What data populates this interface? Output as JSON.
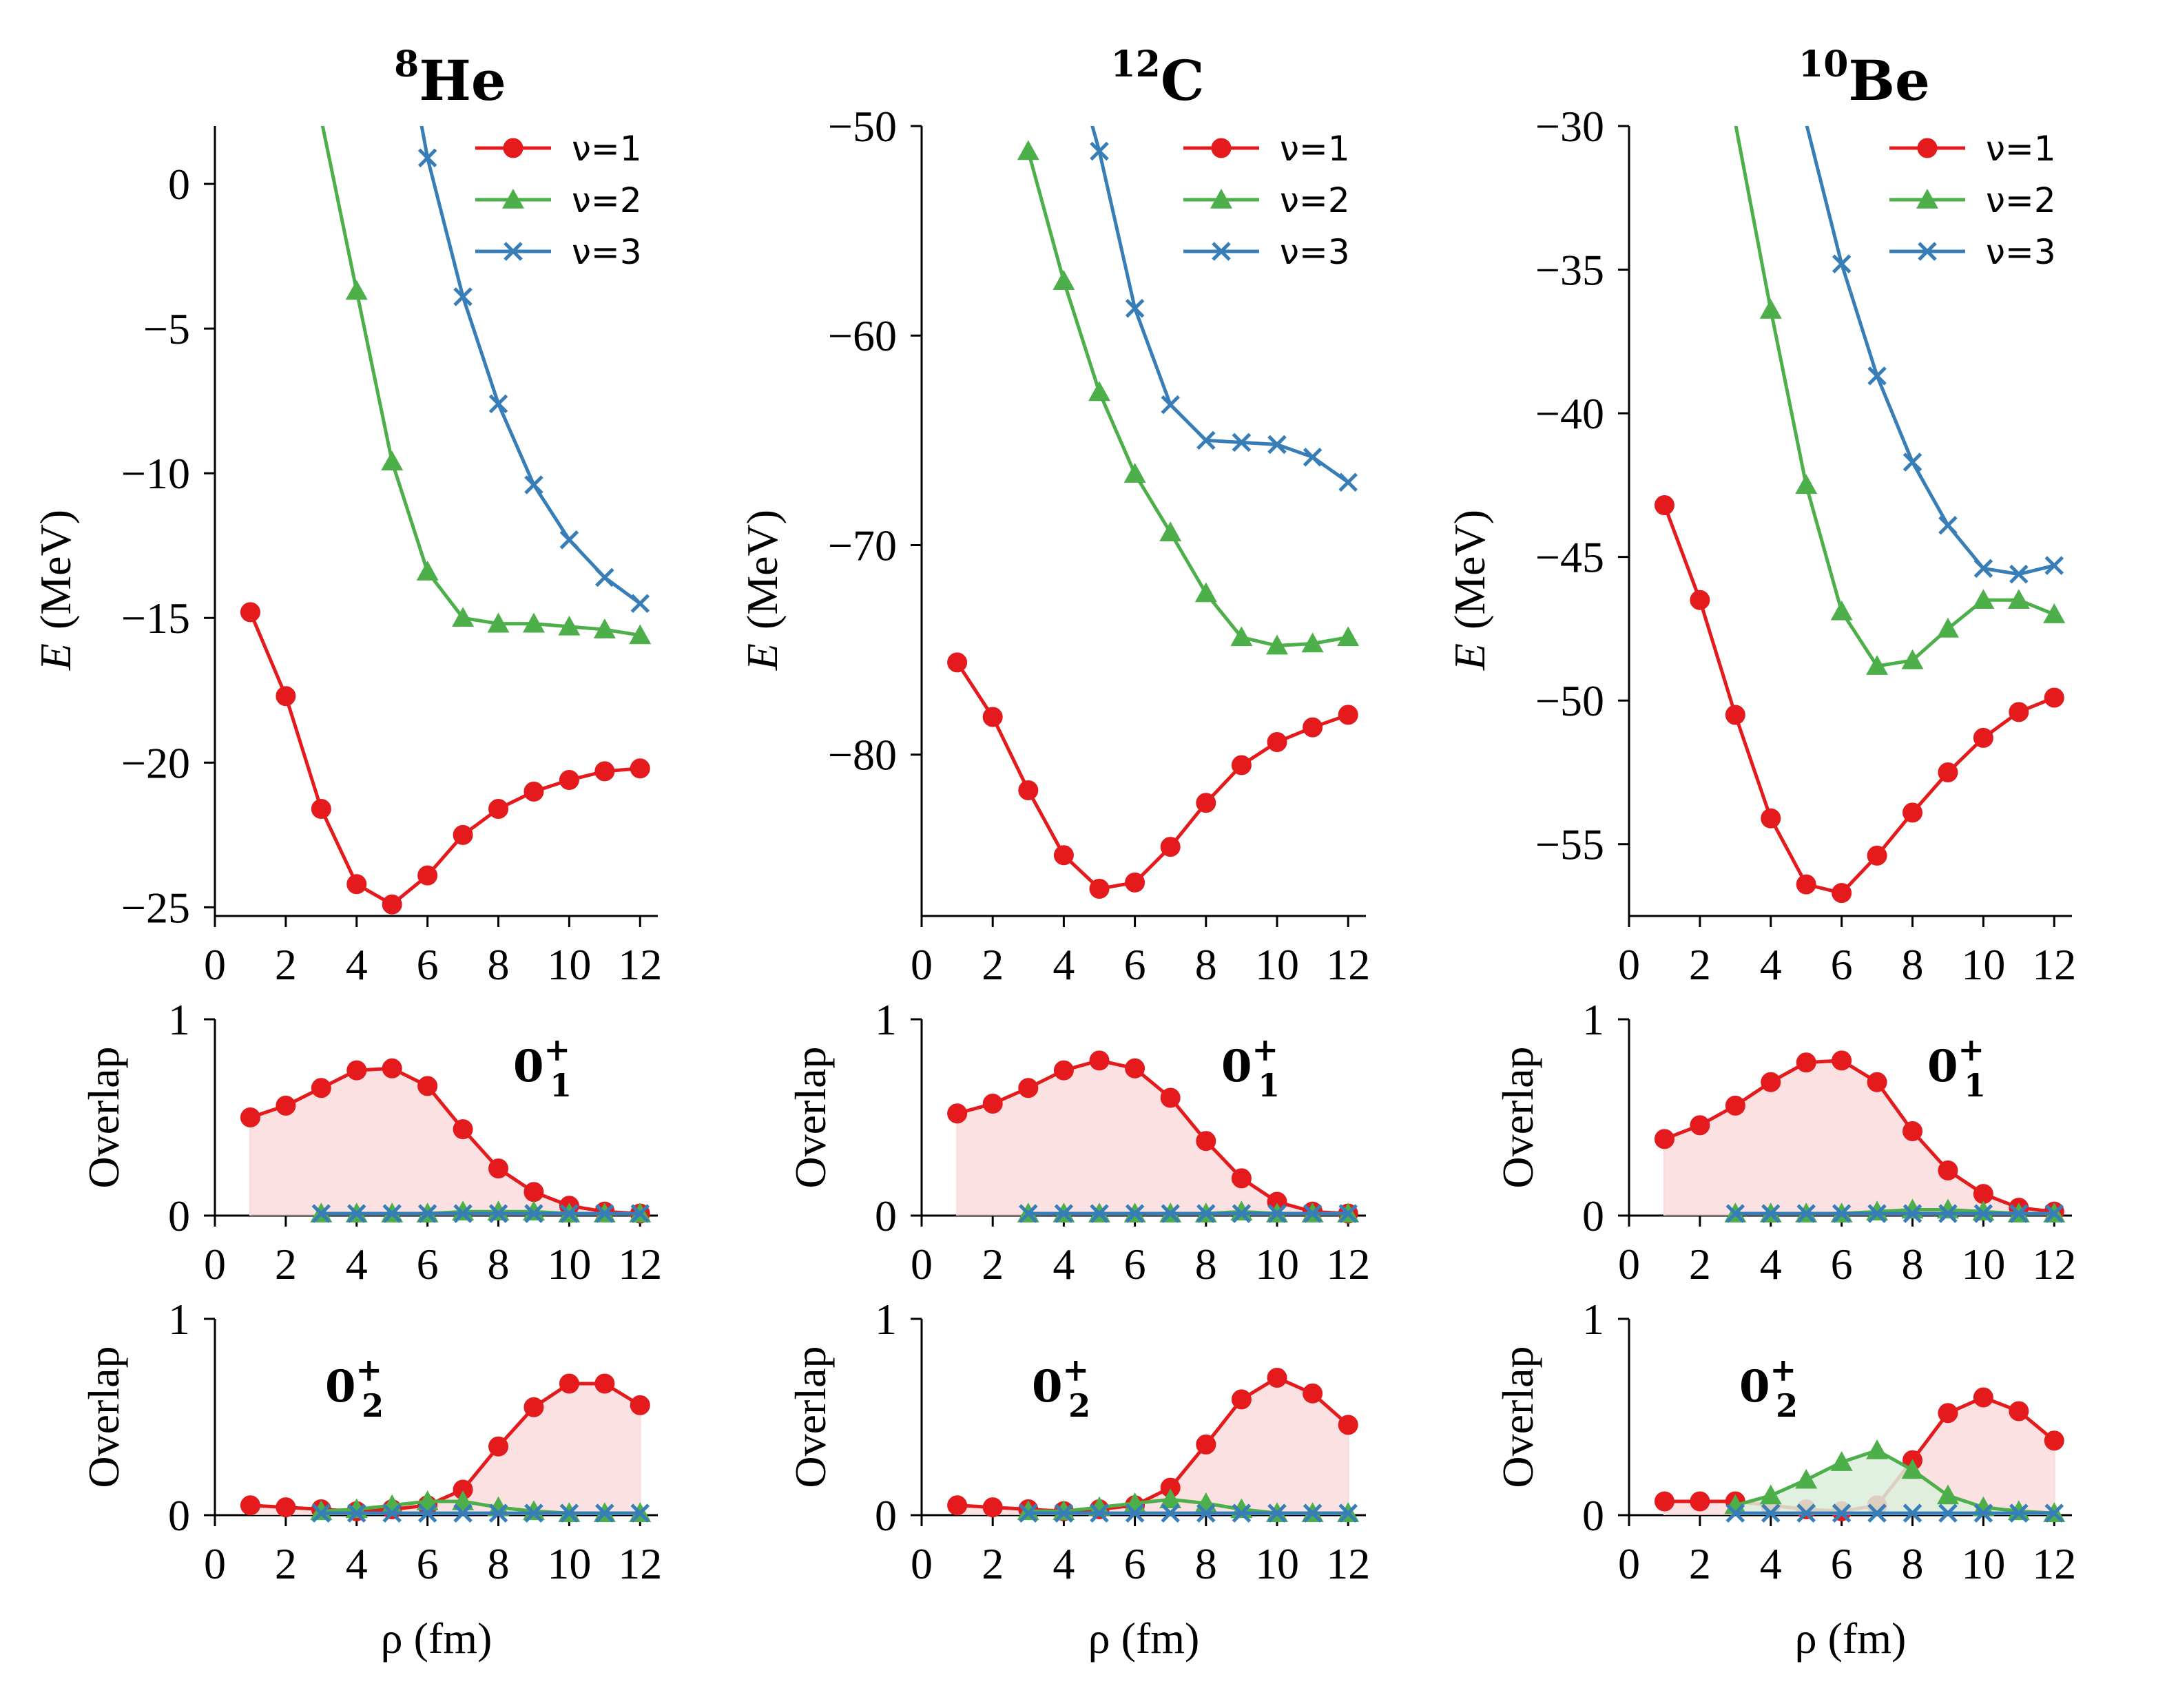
{
  "colors": {
    "nu1": "#e41a1c",
    "nu2": "#4daf4a",
    "nu3": "#377eb8",
    "fill1": "#fadcdc",
    "fill2": "#dcefdc",
    "axis": "#000000"
  },
  "xlabel": "ρ (fm)",
  "ylabel_energy_symbol": "E",
  "ylabel_energy_unit": "(MeV)",
  "ylabel_overlap": "Overlap",
  "legend_labels": [
    "ν=1",
    "ν=2",
    "ν=3"
  ],
  "state_labels": {
    "first": {
      "base": "0",
      "sup": "+",
      "sub": "1"
    },
    "second": {
      "base": "0",
      "sup": "+",
      "sub": "2"
    }
  },
  "chart_data": [
    {
      "type": "line",
      "nucleus": {
        "mass": "8",
        "symbol": "He"
      },
      "energy": {
        "xlim": [
          0,
          12.5
        ],
        "ylim": [
          -25.3,
          2
        ],
        "yticks": [
          0,
          -5,
          -10,
          -15,
          -20,
          -25
        ],
        "ytick_labels": [
          "0",
          "−5",
          "−10",
          "−15",
          "−20",
          "−25"
        ],
        "xticks": [
          0,
          2,
          4,
          6,
          8,
          10,
          12
        ],
        "series": [
          {
            "name": "ν=1",
            "x": [
              1,
              2,
              3,
              4,
              5,
              6,
              7,
              8,
              9,
              10,
              11,
              12
            ],
            "y": [
              -14.8,
              -17.7,
              -21.6,
              -24.2,
              -24.9,
              -23.9,
              -22.5,
              -21.6,
              -21.0,
              -20.6,
              -20.3,
              -20.2
            ]
          },
          {
            "name": "ν=2",
            "x": [
              4,
              5,
              6,
              7,
              8,
              9,
              10,
              11,
              12
            ],
            "y": [
              -3.7,
              -9.6,
              -13.4,
              -15.0,
              -15.2,
              -15.2,
              -15.3,
              -15.4,
              -15.6
            ],
            "extend_top_from_x": 3.0
          },
          {
            "name": "ν=3",
            "x": [
              6,
              7,
              8,
              9,
              10,
              11,
              12
            ],
            "y": [
              0.9,
              -3.9,
              -7.6,
              -10.4,
              -12.3,
              -13.6,
              -14.5
            ],
            "extend_top_from_x": 5.8
          }
        ]
      },
      "overlap_first": {
        "ylim": [
          0,
          1
        ],
        "yticks": [
          0,
          1
        ],
        "series": [
          {
            "name": "ν=1",
            "x": [
              1,
              2,
              3,
              4,
              5,
              6,
              7,
              8,
              9,
              10,
              11,
              12
            ],
            "y": [
              0.5,
              0.56,
              0.65,
              0.74,
              0.75,
              0.66,
              0.44,
              0.24,
              0.12,
              0.05,
              0.02,
              0.01
            ],
            "filled": true
          },
          {
            "name": "ν=2",
            "x": [
              3,
              4,
              5,
              6,
              7,
              8,
              9,
              10,
              11,
              12
            ],
            "y": [
              0.01,
              0.01,
              0.01,
              0.01,
              0.02,
              0.02,
              0.02,
              0.01,
              0.01,
              0.01
            ]
          },
          {
            "name": "ν=3",
            "x": [
              3,
              4,
              5,
              6,
              7,
              8,
              9,
              10,
              11,
              12
            ],
            "y": [
              0.01,
              0.01,
              0.01,
              0.01,
              0.01,
              0.01,
              0.01,
              0.01,
              0.01,
              0.01
            ]
          }
        ]
      },
      "overlap_second": {
        "ylim": [
          0,
          1
        ],
        "yticks": [
          0,
          1
        ],
        "series": [
          {
            "name": "ν=1",
            "x": [
              1,
              2,
              3,
              4,
              5,
              6,
              7,
              8,
              9,
              10,
              11,
              12
            ],
            "y": [
              0.05,
              0.04,
              0.03,
              0.02,
              0.03,
              0.05,
              0.13,
              0.35,
              0.55,
              0.67,
              0.67,
              0.56
            ],
            "filled": true
          },
          {
            "name": "ν=2",
            "x": [
              3,
              4,
              5,
              6,
              7,
              8,
              9,
              10,
              11,
              12
            ],
            "y": [
              0.02,
              0.03,
              0.05,
              0.07,
              0.07,
              0.04,
              0.02,
              0.01,
              0.01,
              0.01
            ]
          },
          {
            "name": "ν=3",
            "x": [
              3,
              4,
              5,
              6,
              7,
              8,
              9,
              10,
              11,
              12
            ],
            "y": [
              0.01,
              0.01,
              0.01,
              0.01,
              0.01,
              0.01,
              0.01,
              0.01,
              0.01,
              0.01
            ]
          }
        ]
      }
    },
    {
      "type": "line",
      "nucleus": {
        "mass": "12",
        "symbol": "C"
      },
      "energy": {
        "xlim": [
          0,
          12.5
        ],
        "ylim": [
          -87.7,
          -50
        ],
        "yticks": [
          -50,
          -60,
          -70,
          -80
        ],
        "ytick_labels": [
          "−50",
          "−60",
          "−70",
          "−80"
        ],
        "xticks": [
          0,
          2,
          4,
          6,
          8,
          10,
          12
        ],
        "series": [
          {
            "name": "ν=1",
            "x": [
              1,
              2,
              3,
              4,
              5,
              6,
              7,
              8,
              9,
              10,
              11,
              12
            ],
            "y": [
              -75.6,
              -78.2,
              -81.7,
              -84.8,
              -86.4,
              -86.1,
              -84.4,
              -82.3,
              -80.5,
              -79.4,
              -78.7,
              -78.1
            ]
          },
          {
            "name": "ν=2",
            "x": [
              3,
              4,
              5,
              6,
              7,
              8,
              9,
              10,
              11,
              12
            ],
            "y": [
              -51.2,
              -57.4,
              -62.7,
              -66.6,
              -69.4,
              -72.3,
              -74.4,
              -74.8,
              -74.7,
              -74.4
            ]
          },
          {
            "name": "ν=3",
            "x": [
              5,
              6,
              7,
              8,
              9,
              10,
              11,
              12
            ],
            "y": [
              -51.2,
              -58.7,
              -63.3,
              -65.0,
              -65.1,
              -65.2,
              -65.8,
              -67.0
            ],
            "extend_top_from_x": 4.75
          }
        ]
      },
      "overlap_first": {
        "ylim": [
          0,
          1
        ],
        "yticks": [
          0,
          1
        ],
        "series": [
          {
            "name": "ν=1",
            "x": [
              1,
              2,
              3,
              4,
              5,
              6,
              7,
              8,
              9,
              10,
              11,
              12
            ],
            "y": [
              0.52,
              0.57,
              0.65,
              0.74,
              0.79,
              0.75,
              0.6,
              0.38,
              0.19,
              0.07,
              0.02,
              0.01
            ],
            "filled": true
          },
          {
            "name": "ν=2",
            "x": [
              3,
              4,
              5,
              6,
              7,
              8,
              9,
              10,
              11,
              12
            ],
            "y": [
              0.01,
              0.01,
              0.01,
              0.01,
              0.01,
              0.01,
              0.02,
              0.01,
              0.01,
              0.01
            ]
          },
          {
            "name": "ν=3",
            "x": [
              3,
              4,
              5,
              6,
              7,
              8,
              9,
              10,
              11,
              12
            ],
            "y": [
              0.01,
              0.01,
              0.01,
              0.01,
              0.01,
              0.01,
              0.01,
              0.01,
              0.01,
              0.01
            ]
          }
        ]
      },
      "overlap_second": {
        "ylim": [
          0,
          1
        ],
        "yticks": [
          0,
          1
        ],
        "series": [
          {
            "name": "ν=1",
            "x": [
              1,
              2,
              3,
              4,
              5,
              6,
              7,
              8,
              9,
              10,
              11,
              12
            ],
            "y": [
              0.05,
              0.04,
              0.03,
              0.02,
              0.03,
              0.05,
              0.14,
              0.36,
              0.59,
              0.7,
              0.62,
              0.46
            ],
            "filled": true
          },
          {
            "name": "ν=2",
            "x": [
              3,
              4,
              5,
              6,
              7,
              8,
              9,
              10,
              11,
              12
            ],
            "y": [
              0.02,
              0.02,
              0.04,
              0.06,
              0.08,
              0.06,
              0.03,
              0.01,
              0.01,
              0.01
            ]
          },
          {
            "name": "ν=3",
            "x": [
              3,
              4,
              5,
              6,
              7,
              8,
              9,
              10,
              11,
              12
            ],
            "y": [
              0.01,
              0.01,
              0.01,
              0.01,
              0.01,
              0.01,
              0.01,
              0.01,
              0.01,
              0.01
            ]
          }
        ]
      }
    },
    {
      "type": "line",
      "nucleus": {
        "mass": "10",
        "symbol": "Be"
      },
      "energy": {
        "xlim": [
          0,
          12.5
        ],
        "ylim": [
          -57.5,
          -30
        ],
        "yticks": [
          -30,
          -35,
          -40,
          -45,
          -50,
          -55
        ],
        "ytick_labels": [
          "−30",
          "−35",
          "−40",
          "−45",
          "−50",
          "−55"
        ],
        "xticks": [
          0,
          2,
          4,
          6,
          8,
          10,
          12
        ],
        "series": [
          {
            "name": "ν=1",
            "x": [
              1,
              2,
              3,
              4,
              5,
              6,
              7,
              8,
              9,
              10,
              11,
              12
            ],
            "y": [
              -43.2,
              -46.5,
              -50.5,
              -54.1,
              -56.4,
              -56.7,
              -55.4,
              -53.9,
              -52.5,
              -51.3,
              -50.4,
              -49.9
            ]
          },
          {
            "name": "ν=2",
            "x": [
              3,
              4,
              5,
              6,
              7,
              8,
              9,
              10,
              11,
              12
            ],
            "y": [
              -29.9,
              -36.4,
              -42.5,
              -46.9,
              -48.8,
              -48.6,
              -47.5,
              -46.5,
              -46.5,
              -47.0
            ]
          },
          {
            "name": "ν=3",
            "x": [
              5,
              6,
              7,
              8,
              9,
              10,
              11,
              12
            ],
            "y": [
              -29.9,
              -34.8,
              -38.7,
              -41.7,
              -43.9,
              -45.4,
              -45.6,
              -45.3
            ]
          }
        ]
      },
      "overlap_first": {
        "ylim": [
          0,
          1
        ],
        "yticks": [
          0,
          1
        ],
        "series": [
          {
            "name": "ν=1",
            "x": [
              1,
              2,
              3,
              4,
              5,
              6,
              7,
              8,
              9,
              10,
              11,
              12
            ],
            "y": [
              0.39,
              0.46,
              0.56,
              0.68,
              0.78,
              0.79,
              0.68,
              0.43,
              0.23,
              0.11,
              0.04,
              0.02
            ],
            "filled": true
          },
          {
            "name": "ν=2",
            "x": [
              3,
              4,
              5,
              6,
              7,
              8,
              9,
              10,
              11,
              12
            ],
            "y": [
              0.01,
              0.01,
              0.01,
              0.01,
              0.02,
              0.03,
              0.03,
              0.02,
              0.01,
              0.01
            ]
          },
          {
            "name": "ν=3",
            "x": [
              3,
              4,
              5,
              6,
              7,
              8,
              9,
              10,
              11,
              12
            ],
            "y": [
              0.01,
              0.01,
              0.01,
              0.01,
              0.01,
              0.01,
              0.01,
              0.01,
              0.01,
              0.01
            ]
          }
        ]
      },
      "overlap_second": {
        "ylim": [
          0,
          1
        ],
        "yticks": [
          0,
          1
        ],
        "series": [
          {
            "name": "ν=1",
            "x": [
              1,
              2,
              3,
              4,
              5,
              6,
              7,
              8,
              9,
              10,
              11,
              12
            ],
            "y": [
              0.07,
              0.07,
              0.07,
              0.05,
              0.03,
              0.02,
              0.05,
              0.28,
              0.52,
              0.6,
              0.53,
              0.38
            ],
            "filled": true
          },
          {
            "name": "ν=2",
            "x": [
              3,
              4,
              5,
              6,
              7,
              8,
              9,
              10,
              11,
              12
            ],
            "y": [
              0.05,
              0.1,
              0.18,
              0.27,
              0.33,
              0.23,
              0.1,
              0.04,
              0.02,
              0.01
            ],
            "filled": true
          },
          {
            "name": "ν=3",
            "x": [
              3,
              4,
              5,
              6,
              7,
              8,
              9,
              10,
              11,
              12
            ],
            "y": [
              0.01,
              0.01,
              0.01,
              0.01,
              0.01,
              0.01,
              0.01,
              0.01,
              0.01,
              0.01
            ]
          }
        ]
      }
    }
  ]
}
